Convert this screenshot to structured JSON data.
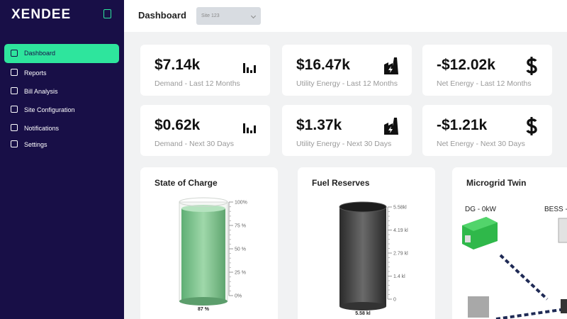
{
  "sidebar": {
    "logo": "XENDEE",
    "menu": [
      "Dashboard",
      "Reports",
      "Bill Analysis",
      "Site Configuration",
      "Notifications",
      "Settings"
    ]
  },
  "header": {
    "title": "Dashboard",
    "site_select": "Site 123"
  },
  "cards": [
    {
      "value": "$7.14k",
      "label": "Demand - Last 12 Months"
    },
    {
      "value": "$16.47k",
      "label": "Utility Energy - Last 12 Months"
    },
    {
      "value": "-$12.02k",
      "label": "Net Energy - Last 12 Months"
    },
    {
      "value": "$0.62k",
      "label": "Demand - Next 30 Days"
    },
    {
      "value": "$1.37k",
      "label": "Utility Energy - Next 30 Days"
    },
    {
      "value": "-$1.21k",
      "label": "Net Energy - Next 30 Days"
    }
  ],
  "panels": {
    "state_of_charge": {
      "title": "State of Charge",
      "ticks": [
        "100%",
        "75 %",
        "50 %",
        "25 %",
        "0%"
      ],
      "level": "87 %"
    },
    "fuel_reserves": {
      "title": "Fuel Reserves",
      "ticks": [
        "5.58kl",
        "4.19 kl",
        "2.79 kl",
        "1.4 kl",
        "0"
      ],
      "level": "5.58 kl"
    },
    "microgrid_twin": {
      "title": "Microgrid Twin",
      "dg": "DG - 0kW",
      "bess": "BESS -"
    }
  }
}
